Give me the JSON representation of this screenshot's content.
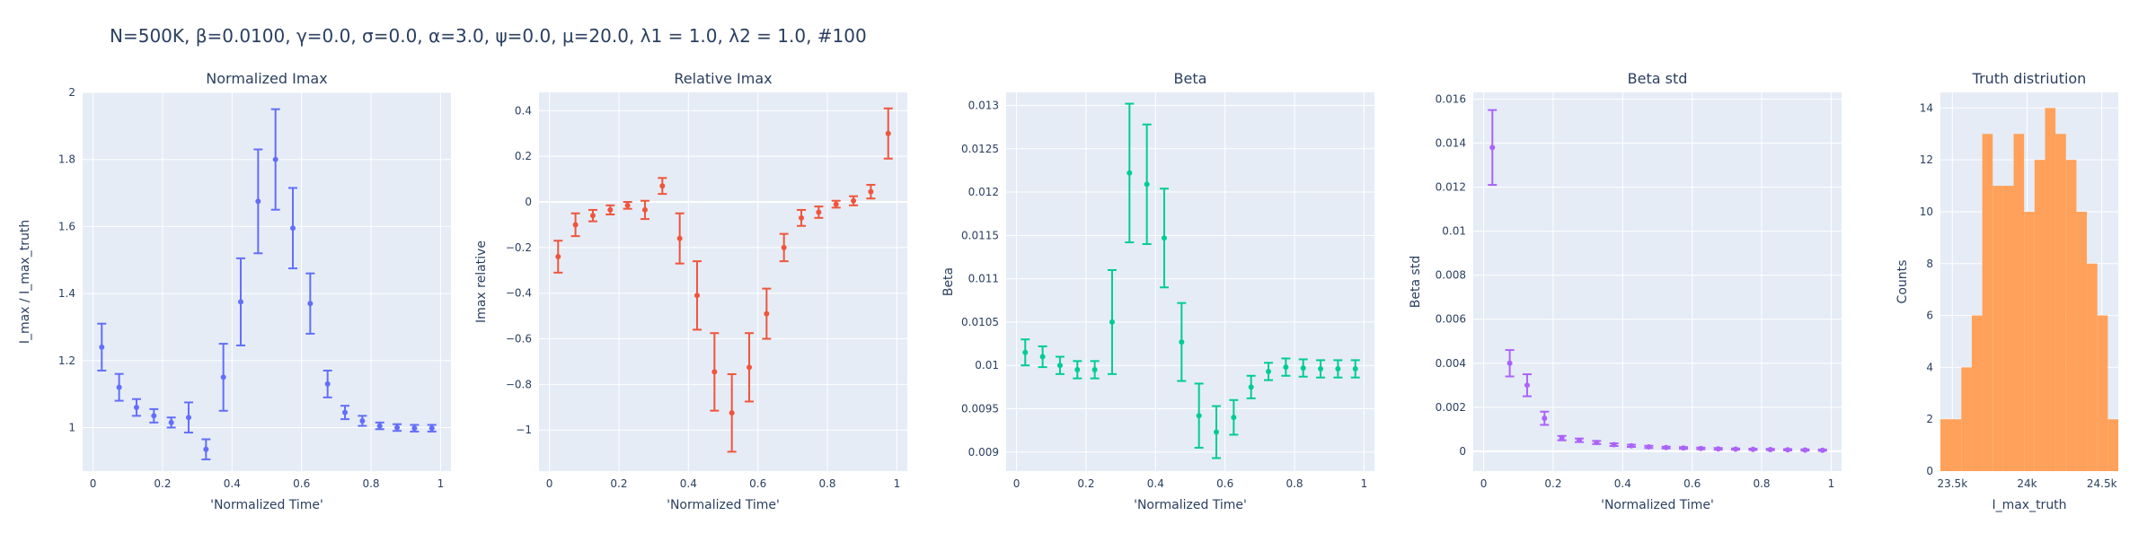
{
  "figure": {
    "title": "N=500K, β=0.0100, γ=0.0, σ=0.0,  α=3.0, ψ=0.0, μ=20.0, λ1 = 1.0, λ2 = 1.0, #100"
  },
  "colors": {
    "plot_bg": "#e5ecf6",
    "grid": "#ffffff",
    "text": "#2a3f5f",
    "blue": "#636efa",
    "red": "#ef553b",
    "green": "#00cc96",
    "purple": "#ab63fa",
    "orange": "#ffa15a"
  },
  "chart_data": [
    {
      "type": "scatter",
      "title": "Normalized Imax",
      "xlabel": "'Normalized Time'",
      "ylabel": "I_max / I_max_truth",
      "color": "blue",
      "xlim": [
        -0.03,
        1.03
      ],
      "ylim": [
        0.87,
        2.0
      ],
      "x_ticks": [
        0,
        0.2,
        0.4,
        0.6,
        0.8,
        1
      ],
      "x_tick_labels": [
        "0",
        "0.2",
        "0.4",
        "0.6",
        "0.8",
        "1"
      ],
      "y_ticks": [
        1,
        1.2,
        1.4,
        1.6,
        1.8,
        2
      ],
      "y_tick_labels": [
        "1",
        "1.2",
        "1.4",
        "1.6",
        "1.8",
        "2"
      ],
      "x": [
        0.025,
        0.075,
        0.125,
        0.175,
        0.225,
        0.275,
        0.325,
        0.375,
        0.425,
        0.475,
        0.525,
        0.575,
        0.625,
        0.675,
        0.725,
        0.775,
        0.825,
        0.875,
        0.925,
        0.975
      ],
      "y": [
        1.24,
        1.12,
        1.06,
        1.035,
        1.015,
        1.03,
        0.935,
        1.15,
        1.375,
        1.675,
        1.8,
        1.595,
        1.37,
        1.13,
        1.045,
        1.02,
        1.005,
        1.0,
        0.998,
        0.998
      ],
      "err": [
        0.07,
        0.04,
        0.025,
        0.02,
        0.015,
        0.045,
        0.03,
        0.1,
        0.13,
        0.155,
        0.15,
        0.12,
        0.09,
        0.04,
        0.02,
        0.015,
        0.01,
        0.01,
        0.01,
        0.01
      ]
    },
    {
      "type": "scatter",
      "title": "Relative Imax",
      "xlabel": "'Normalized Time'",
      "ylabel": "Imax relative",
      "color": "red",
      "xlim": [
        -0.03,
        1.03
      ],
      "ylim": [
        -1.18,
        0.48
      ],
      "x_ticks": [
        0,
        0.2,
        0.4,
        0.6,
        0.8,
        1
      ],
      "x_tick_labels": [
        "0",
        "0.2",
        "0.4",
        "0.6",
        "0.8",
        "1"
      ],
      "y_ticks": [
        -1,
        -0.8,
        -0.6,
        -0.4,
        -0.2,
        0,
        0.2,
        0.4
      ],
      "y_tick_labels": [
        "−1",
        "−0.8",
        "−0.6",
        "−0.4",
        "−0.2",
        "0",
        "0.2",
        "0.4"
      ],
      "x": [
        0.025,
        0.075,
        0.125,
        0.175,
        0.225,
        0.275,
        0.325,
        0.375,
        0.425,
        0.475,
        0.525,
        0.575,
        0.625,
        0.675,
        0.725,
        0.775,
        0.825,
        0.875,
        0.925,
        0.975
      ],
      "y": [
        -0.24,
        -0.1,
        -0.06,
        -0.035,
        -0.015,
        -0.035,
        0.07,
        -0.16,
        -0.41,
        -0.745,
        -0.925,
        -0.725,
        -0.49,
        -0.2,
        -0.07,
        -0.045,
        -0.01,
        0.005,
        0.045,
        0.3
      ],
      "err": [
        0.07,
        0.05,
        0.025,
        0.02,
        0.015,
        0.04,
        0.035,
        0.11,
        0.15,
        0.17,
        0.17,
        0.15,
        0.11,
        0.06,
        0.035,
        0.025,
        0.015,
        0.02,
        0.03,
        0.11
      ]
    },
    {
      "type": "scatter",
      "title": "Beta",
      "xlabel": "'Normalized Time'",
      "ylabel": "Beta",
      "color": "green",
      "xlim": [
        -0.03,
        1.03
      ],
      "ylim": [
        0.00878,
        0.01315
      ],
      "x_ticks": [
        0,
        0.2,
        0.4,
        0.6,
        0.8,
        1
      ],
      "x_tick_labels": [
        "0",
        "0.2",
        "0.4",
        "0.6",
        "0.8",
        "1"
      ],
      "y_ticks": [
        0.009,
        0.0095,
        0.01,
        0.0105,
        0.011,
        0.0115,
        0.012,
        0.0125,
        0.013
      ],
      "y_tick_labels": [
        "0.009",
        "0.0095",
        "0.01",
        "0.0105",
        "0.011",
        "0.0115",
        "0.012",
        "0.0125",
        "0.013"
      ],
      "x": [
        0.025,
        0.075,
        0.125,
        0.175,
        0.225,
        0.275,
        0.325,
        0.375,
        0.425,
        0.475,
        0.525,
        0.575,
        0.625,
        0.675,
        0.725,
        0.775,
        0.825,
        0.875,
        0.925,
        0.975
      ],
      "y": [
        0.01015,
        0.0101,
        0.01,
        0.00995,
        0.00995,
        0.0105,
        0.01222,
        0.01209,
        0.01147,
        0.01027,
        0.00942,
        0.00923,
        0.0094,
        0.00975,
        0.00993,
        0.00998,
        0.00997,
        0.00996,
        0.00996,
        0.00996
      ],
      "err": [
        0.00015,
        0.00012,
        0.0001,
        0.0001,
        0.0001,
        0.0006,
        0.0008,
        0.00069,
        0.00057,
        0.00045,
        0.00037,
        0.0003,
        0.0002,
        0.00013,
        0.0001,
        0.0001,
        0.0001,
        0.0001,
        0.0001,
        0.0001
      ]
    },
    {
      "type": "scatter",
      "title": "Beta std",
      "xlabel": "'Normalized Time'",
      "ylabel": "Beta std",
      "color": "purple",
      "xlim": [
        -0.03,
        1.03
      ],
      "ylim": [
        -0.0009,
        0.0163
      ],
      "x_ticks": [
        0,
        0.2,
        0.4,
        0.6,
        0.8,
        1
      ],
      "x_tick_labels": [
        "0",
        "0.2",
        "0.4",
        "0.6",
        "0.8",
        "1"
      ],
      "y_ticks": [
        0,
        0.002,
        0.004,
        0.006,
        0.008,
        0.01,
        0.012,
        0.014,
        0.016
      ],
      "y_tick_labels": [
        "0",
        "0.002",
        "0.004",
        "0.006",
        "0.008",
        "0.01",
        "0.012",
        "0.014",
        "0.016"
      ],
      "x": [
        0.025,
        0.075,
        0.125,
        0.175,
        0.225,
        0.275,
        0.325,
        0.375,
        0.425,
        0.475,
        0.525,
        0.575,
        0.625,
        0.675,
        0.725,
        0.775,
        0.825,
        0.875,
        0.925,
        0.975
      ],
      "y": [
        0.0138,
        0.004,
        0.003,
        0.0015,
        0.0006,
        0.0005,
        0.0004,
        0.0003,
        0.00025,
        0.0002,
        0.00017,
        0.00015,
        0.00013,
        0.00011,
        0.0001,
        9e-05,
        8e-05,
        7e-05,
        6e-05,
        5e-05
      ],
      "err": [
        0.0017,
        0.0006,
        0.0005,
        0.0003,
        0.0001,
        8e-05,
        7e-05,
        6e-05,
        5e-05,
        5e-05,
        4e-05,
        4e-05,
        4e-05,
        4e-05,
        3e-05,
        3e-05,
        3e-05,
        3e-05,
        3e-05,
        3e-05
      ]
    },
    {
      "type": "bar",
      "title": "Truth distriution",
      "xlabel": "I_max_truth",
      "ylabel": "Counts",
      "color": "orange",
      "xlim": [
        23420,
        24610
      ],
      "ylim": [
        0,
        14.6
      ],
      "x_ticks": [
        23500,
        24000,
        24500
      ],
      "x_tick_labels": [
        "23.5k",
        "24k",
        "24.5k"
      ],
      "y_ticks": [
        0,
        2,
        4,
        6,
        8,
        10,
        12,
        14
      ],
      "y_tick_labels": [
        "0",
        "2",
        "4",
        "6",
        "8",
        "10",
        "12",
        "14"
      ],
      "bins": [
        {
          "x0": 23420,
          "x1": 23560,
          "count": 2
        },
        {
          "x0": 23560,
          "x1": 23630,
          "count": 4
        },
        {
          "x0": 23630,
          "x1": 23700,
          "count": 6
        },
        {
          "x0": 23700,
          "x1": 23770,
          "count": 13
        },
        {
          "x0": 23770,
          "x1": 23840,
          "count": 11
        },
        {
          "x0": 23840,
          "x1": 23910,
          "count": 11
        },
        {
          "x0": 23910,
          "x1": 23980,
          "count": 13
        },
        {
          "x0": 23980,
          "x1": 24050,
          "count": 10
        },
        {
          "x0": 24050,
          "x1": 24120,
          "count": 12
        },
        {
          "x0": 24120,
          "x1": 24190,
          "count": 14
        },
        {
          "x0": 24190,
          "x1": 24260,
          "count": 13
        },
        {
          "x0": 24260,
          "x1": 24330,
          "count": 12
        },
        {
          "x0": 24330,
          "x1": 24400,
          "count": 10
        },
        {
          "x0": 24400,
          "x1": 24470,
          "count": 8
        },
        {
          "x0": 24470,
          "x1": 24540,
          "count": 6
        },
        {
          "x0": 24540,
          "x1": 24610,
          "count": 2
        }
      ]
    }
  ]
}
